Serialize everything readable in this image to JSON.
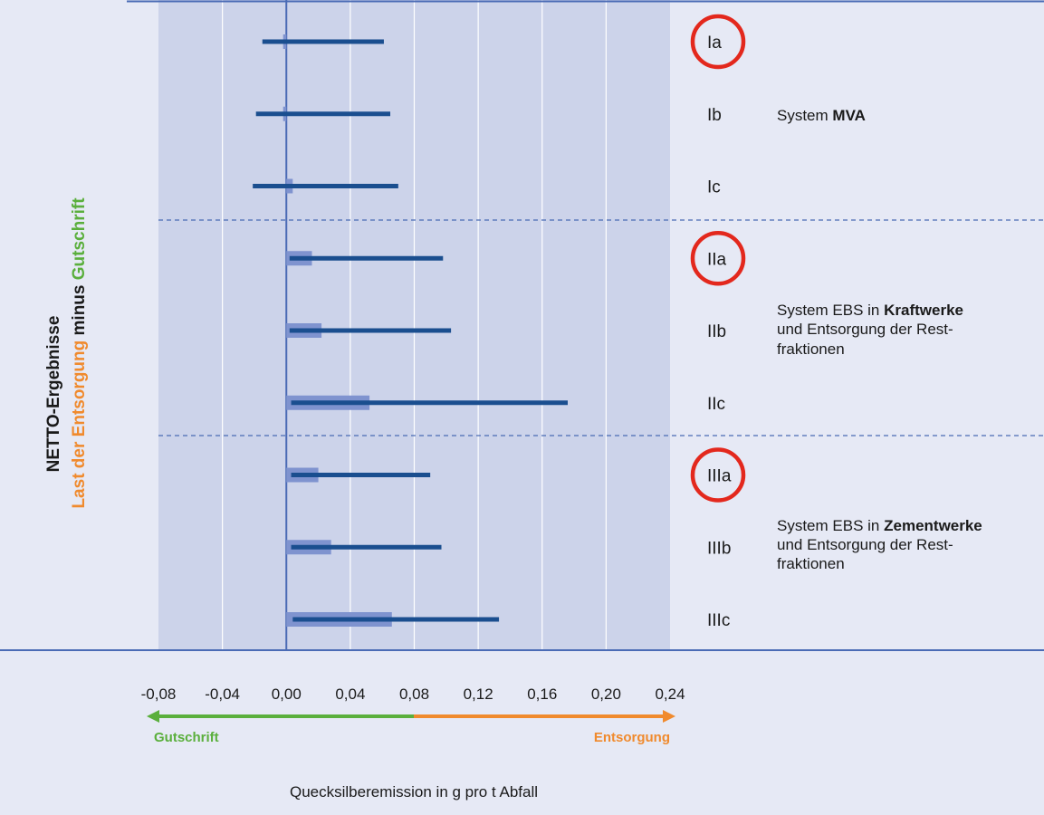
{
  "chart_data": {
    "type": "bar",
    "orientation": "horizontal",
    "y_title": {
      "line1": "NETTO-Ergebnisse",
      "line2_part1": "Last der ",
      "line2_part2": "Entsorgung",
      "line2_part3": " minus ",
      "line2_part4": "Gutschrift"
    },
    "xlabel": "Quecksilberemission in g pro t Abfall",
    "xlim": [
      -0.08,
      0.24
    ],
    "x_ticks": [
      "-0,08",
      "-0,04",
      "0,00",
      "0,04",
      "0,08",
      "0,12",
      "0,16",
      "0,20",
      "0,24"
    ],
    "grid": true,
    "categories": [
      "Ia",
      "Ib",
      "Ic",
      "IIa",
      "IIb",
      "IIc",
      "IIIa",
      "IIIb",
      "IIIc"
    ],
    "series": [
      {
        "type": "bar",
        "values": [
          -0.002,
          -0.002,
          0.004,
          0.016,
          0.022,
          0.052,
          0.02,
          0.028,
          0.066
        ]
      },
      {
        "type": "range",
        "values": [
          [
            -0.015,
            0.061
          ],
          [
            -0.019,
            0.065
          ],
          [
            -0.021,
            0.07
          ],
          [
            0.002,
            0.098
          ],
          [
            0.002,
            0.103
          ],
          [
            0.003,
            0.176
          ],
          [
            0.003,
            0.09
          ],
          [
            0.003,
            0.097
          ],
          [
            0.004,
            0.133
          ]
        ]
      }
    ],
    "highlighted": [
      "Ia",
      "IIa",
      "IIIa"
    ],
    "groups": [
      {
        "line1": "System ",
        "line1_bold": "MVA",
        "line2": "",
        "line3": ""
      },
      {
        "line1": "System EBS in ",
        "line1_bold": "Kraftwerke",
        "line2": "und Entsorgung der Rest-",
        "line3": "fraktionen"
      },
      {
        "line1": "System EBS in ",
        "line1_bold": "Zementwerke",
        "line2": "und Entsorgung der Rest-",
        "line3": "fraktionen"
      }
    ],
    "arrows": {
      "left": "Gutschrift",
      "right": "Entsorgung"
    },
    "colors": {
      "panel_bg": "#e6e9f5",
      "plot_bg": "#ccd3ea",
      "bar": "#7f93cf",
      "range_line": "#1a4e8f",
      "frame_line": "#4a6bb5",
      "circle": "#e3281d",
      "green": "#5aaf3c",
      "orange": "#f08a2d"
    }
  }
}
